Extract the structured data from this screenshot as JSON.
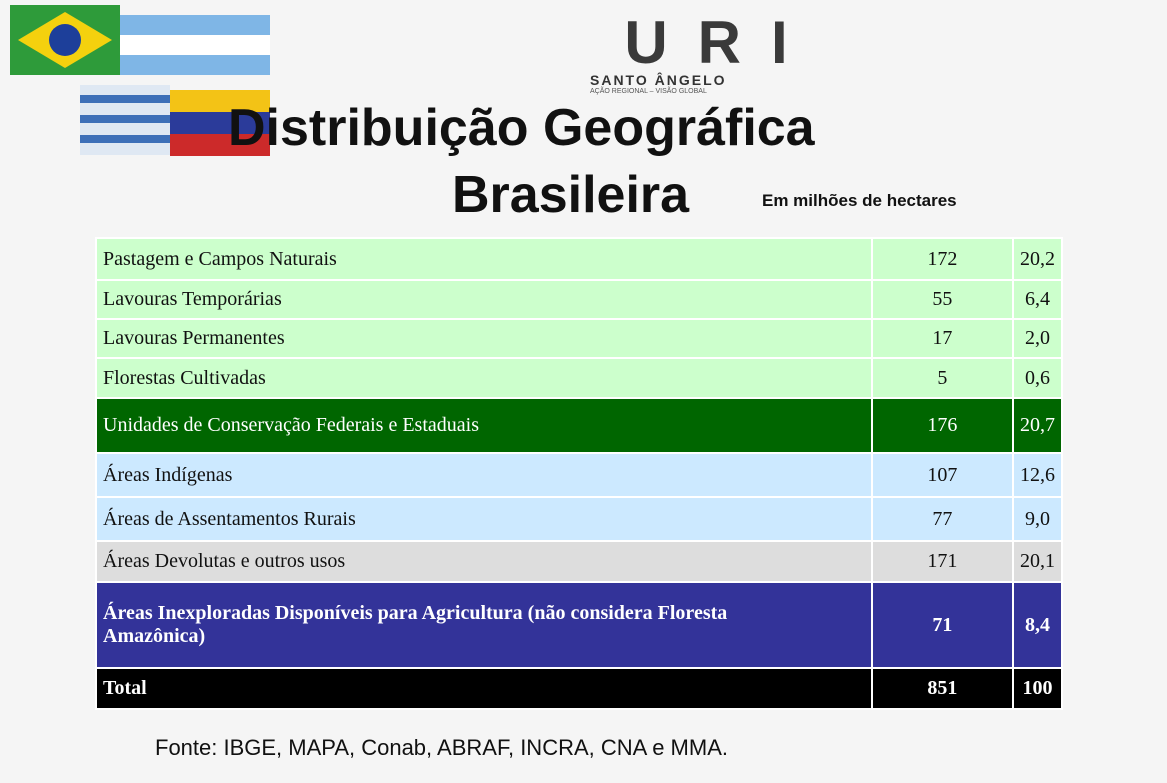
{
  "logo": {
    "name": "URI",
    "city": "SANTO ÂNGELO",
    "motto": "AÇÃO REGIONAL – VISÃO GLOBAL"
  },
  "header": {
    "title_line1": "Distribuição Geográfica",
    "title_line2": "Brasileira",
    "unit": "Em milhões de hectares"
  },
  "table": {
    "rows": [
      [
        "Pastagem e Campos Naturais",
        "172",
        "20,2"
      ],
      [
        "Lavouras Temporárias",
        "55",
        "6,4"
      ],
      [
        "Lavouras Permanentes",
        "17",
        "2,0"
      ],
      [
        "Florestas Cultivadas",
        "5",
        "0,6"
      ],
      [
        "Unidades de Conservação Federais e Estaduais",
        "176",
        "20,7"
      ],
      [
        "Áreas Indígenas",
        "107",
        "12,6"
      ],
      [
        "Áreas de Assentamentos Rurais",
        "77",
        "9,0"
      ],
      [
        "Áreas Devolutas e outros usos",
        "171",
        "20,1"
      ],
      [
        "Áreas Inexploradas Disponíveis para Agricultura (não considera Floresta Amazônica)",
        "71",
        "8,4"
      ],
      [
        "Total",
        "851",
        "100"
      ]
    ]
  },
  "footer": {
    "source": "Fonte: IBGE, MAPA, Conab, ABRAF, INCRA, CNA e MMA."
  }
}
